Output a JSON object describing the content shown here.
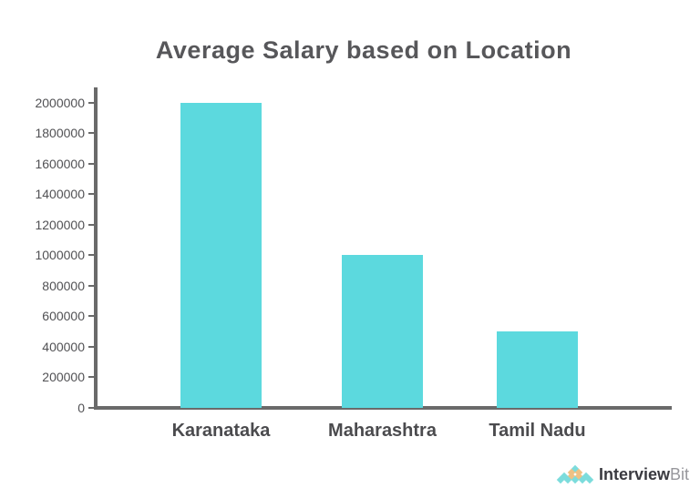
{
  "chart_data": {
    "type": "bar",
    "title": "Average Salary based on Location",
    "categories": [
      "Karanataka",
      "Maharashtra",
      "Tamil Nadu"
    ],
    "values": [
      2000000,
      1000000,
      500000
    ],
    "xlabel": "",
    "ylabel": "",
    "ylim": [
      0,
      2100000
    ],
    "ytick_step": 200000,
    "ytick_labels": [
      "0",
      "200000",
      "400000",
      "600000",
      "800000",
      "1000000",
      "1200000",
      "1400000",
      "1600000",
      "1800000",
      "2000000"
    ],
    "grid": false,
    "legend": "none",
    "bar_color": "#5cd9de"
  },
  "colors": {
    "background": "#ffffff",
    "title_text": "#57575a",
    "axis": "#6a6a6a",
    "ytick_text": "#515154",
    "xtick_text": "#4b4b4e"
  },
  "logo": {
    "text_primary": "Interview",
    "text_secondary": "Bit",
    "teal": "#7cdcdc",
    "gold": "#eec184",
    "diamond_rows": [
      [
        "teal"
      ],
      [
        "gold",
        "gold"
      ],
      [
        "teal",
        "gold",
        "gold",
        "teal"
      ],
      [
        "teal",
        "teal",
        "teal",
        "teal",
        "teal"
      ]
    ]
  }
}
